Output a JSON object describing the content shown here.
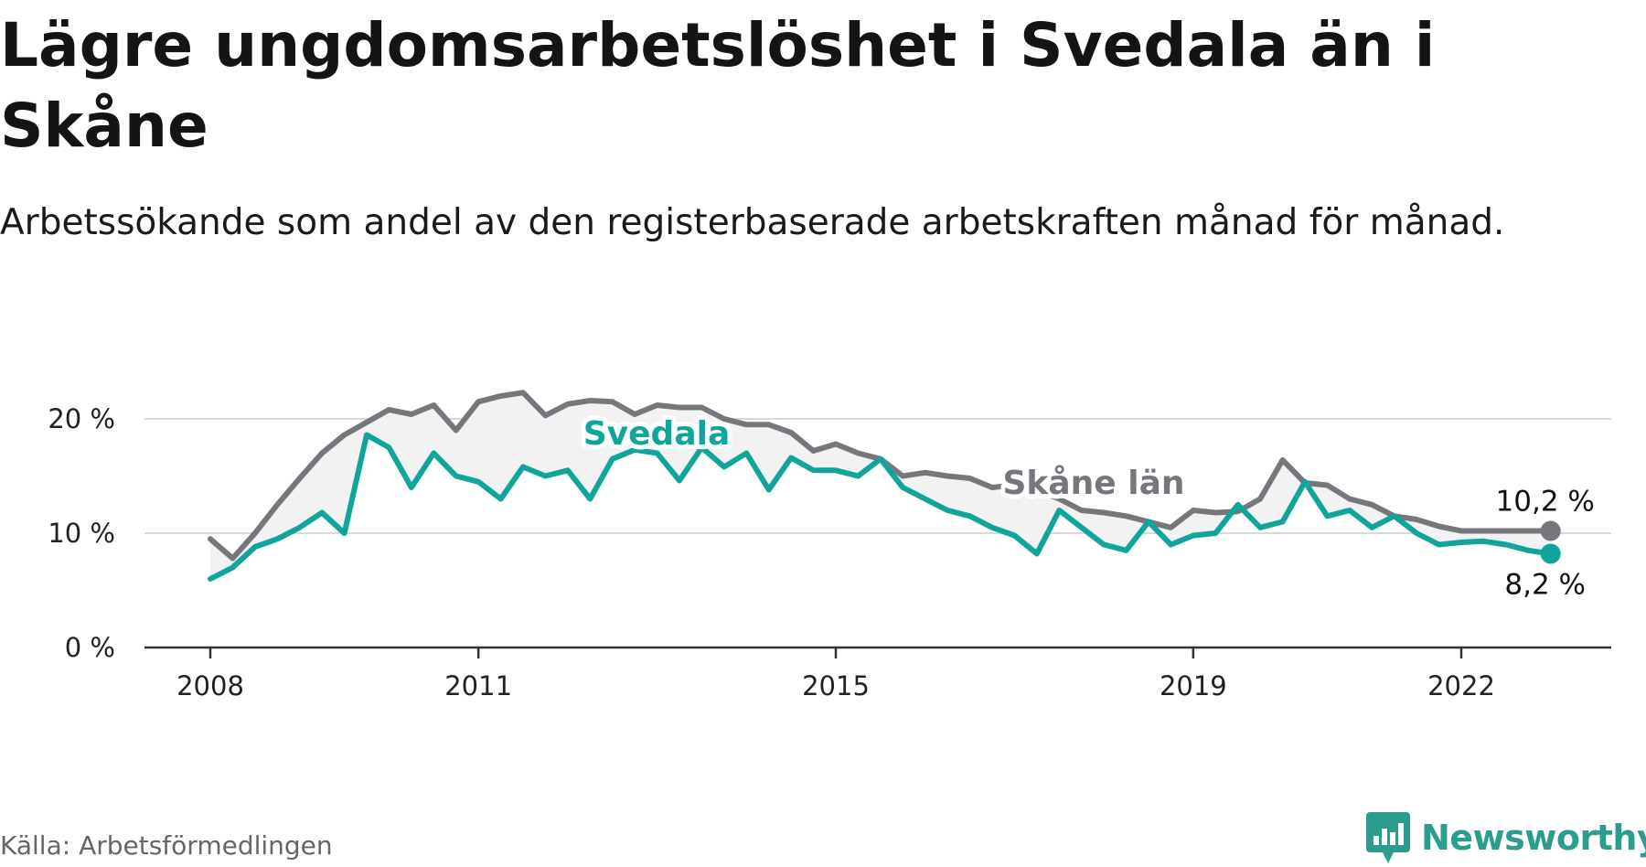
{
  "title": "Lägre ungdomsarbetslöshet i Svedala än i Skåne",
  "subtitle": "Arbetssökande som andel av den registerbaserade arbetskraften månad för månad.",
  "source": "Källa: Arbetsförmedlingen",
  "brand": "Newsworthy",
  "colors": {
    "svedala": "#0fa59b",
    "skane": "#78767d",
    "band": "#f2f2f2",
    "grid": "#d9d9d9",
    "axis": "#333333",
    "brand": "#2a9d8f"
  },
  "chart_data": {
    "type": "line",
    "title": "Lägre ungdomsarbetslöshet i Svedala än i Skåne",
    "xlabel": "",
    "ylabel": "",
    "ylim": [
      0,
      20
    ],
    "yticks": [
      0,
      10,
      20
    ],
    "ytick_labels": [
      "0 %",
      "10 %",
      "20 %"
    ],
    "xlim": [
      2008.0,
      2026.0
    ],
    "xticks": [
      2008,
      2011,
      2015,
      2019,
      2022
    ],
    "xtick_labels": [
      "2008",
      "2011",
      "2015",
      "2019",
      "2022"
    ],
    "grid": true,
    "series": [
      {
        "name": "Skåne län",
        "label": "Skåne län",
        "end_label": "10,2 %",
        "t": [
          2008.0,
          2008.25,
          2008.5,
          2008.75,
          2009.0,
          2009.25,
          2009.5,
          2009.75,
          2010.0,
          2010.25,
          2010.5,
          2010.75,
          2011.0,
          2011.25,
          2011.5,
          2011.75,
          2012.0,
          2012.25,
          2012.5,
          2012.75,
          2013.0,
          2013.25,
          2013.5,
          2013.75,
          2014.0,
          2014.25,
          2014.5,
          2014.75,
          2015.0,
          2015.25,
          2015.5,
          2015.75,
          2016.0,
          2016.25,
          2016.5,
          2016.75,
          2017.0,
          2017.25,
          2017.5,
          2017.75,
          2018.0,
          2018.25,
          2018.5,
          2018.75,
          2019.0,
          2019.25,
          2019.5,
          2019.75,
          2020.0,
          2020.25,
          2020.5,
          2020.75,
          2021.0,
          2021.25,
          2021.5,
          2021.75,
          2022.0,
          2022.25,
          2022.5,
          2022.75,
          2023.0
        ],
        "values": [
          9.5,
          7.8,
          10.0,
          12.5,
          14.8,
          17.0,
          18.6,
          19.7,
          20.8,
          20.4,
          21.2,
          19.0,
          21.5,
          22.0,
          22.3,
          20.3,
          21.3,
          21.6,
          21.5,
          20.4,
          21.2,
          21.0,
          21.0,
          20.0,
          19.5,
          19.5,
          18.8,
          17.2,
          17.8,
          17.0,
          16.5,
          15.0,
          15.3,
          15.0,
          14.8,
          14.0,
          14.2,
          13.8,
          13.0,
          12.0,
          11.8,
          11.5,
          11.0,
          10.5,
          12.0,
          11.8,
          11.9,
          13.0,
          16.4,
          14.4,
          14.2,
          13.0,
          12.5,
          11.5,
          11.2,
          10.6,
          10.2,
          10.2,
          10.2,
          10.2,
          10.2
        ]
      },
      {
        "name": "Svedala",
        "label": "Svedala",
        "end_label": "8,2 %",
        "t": [
          2008.0,
          2008.25,
          2008.5,
          2008.75,
          2009.0,
          2009.25,
          2009.5,
          2009.75,
          2010.0,
          2010.25,
          2010.5,
          2010.75,
          2011.0,
          2011.25,
          2011.5,
          2011.75,
          2012.0,
          2012.25,
          2012.5,
          2012.75,
          2013.0,
          2013.25,
          2013.5,
          2013.75,
          2014.0,
          2014.25,
          2014.5,
          2014.75,
          2015.0,
          2015.25,
          2015.5,
          2015.75,
          2016.0,
          2016.25,
          2016.5,
          2016.75,
          2017.0,
          2017.25,
          2017.5,
          2017.75,
          2018.0,
          2018.25,
          2018.5,
          2018.75,
          2019.0,
          2019.25,
          2019.5,
          2019.75,
          2020.0,
          2020.25,
          2020.5,
          2020.75,
          2021.0,
          2021.25,
          2021.5,
          2021.75,
          2022.0,
          2022.25,
          2022.5,
          2022.75,
          2023.0
        ],
        "values": [
          6.0,
          7.0,
          8.8,
          9.5,
          10.5,
          11.8,
          10.0,
          18.6,
          17.5,
          14.0,
          17.0,
          15.0,
          14.5,
          13.0,
          15.8,
          15.0,
          15.5,
          13.0,
          16.5,
          17.3,
          17.0,
          14.6,
          17.5,
          15.8,
          17.0,
          13.8,
          16.6,
          15.5,
          15.5,
          15.0,
          16.5,
          14.0,
          13.0,
          12.0,
          11.5,
          10.5,
          9.8,
          8.2,
          12.0,
          10.5,
          9.0,
          8.5,
          11.0,
          9.0,
          9.8,
          10.0,
          12.5,
          10.5,
          11.0,
          14.5,
          11.5,
          12.0,
          10.5,
          11.5,
          10.0,
          9.0,
          9.2,
          9.3,
          9.0,
          8.5,
          8.2
        ]
      }
    ]
  }
}
